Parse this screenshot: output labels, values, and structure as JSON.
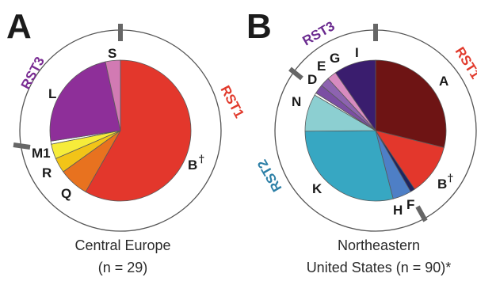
{
  "panels": [
    {
      "letter": "A",
      "caption": [
        "Central Europe",
        "(n = 29)"
      ],
      "chart_data": {
        "type": "pie",
        "title": "",
        "group_labels": [
          {
            "text": "RST1",
            "color": "#e13a2c"
          },
          {
            "text": "RST3",
            "color": "#7a2c93"
          }
        ],
        "slices": [
          {
            "label": "B",
            "mark": "†",
            "value": 17,
            "color": "#e3372c"
          },
          {
            "label": "Q",
            "value": 2,
            "color": "#e8721f"
          },
          {
            "label": "R",
            "value": 1,
            "color": "#f2c418"
          },
          {
            "label": "M1",
            "value": 1,
            "color": "#f6ec3a"
          },
          {
            "label": "",
            "value": 0.2,
            "color": "#ffffff"
          },
          {
            "label": "L",
            "value": 7,
            "color": "#8e2f99"
          },
          {
            "label": "S",
            "value": 1,
            "color": "#d27ab3"
          }
        ]
      }
    },
    {
      "letter": "B",
      "caption": [
        "Northeastern",
        "United States (n = 90)*"
      ],
      "chart_data": {
        "type": "pie",
        "title": "",
        "group_labels": [
          {
            "text": "RST1",
            "color": "#e13a2c"
          },
          {
            "text": "RST3",
            "color": "#6a2a8f"
          },
          {
            "text": "RST2",
            "color": "#2c7fa6"
          }
        ],
        "slices": [
          {
            "label": "A",
            "value": 27,
            "color": "#6e1414"
          },
          {
            "label": "B",
            "mark": "†",
            "value": 11,
            "color": "#e3372c"
          },
          {
            "label": "F",
            "value": 1,
            "color": "#1e2560"
          },
          {
            "label": "H",
            "value": 4,
            "color": "#4e7fc6"
          },
          {
            "label": "K",
            "value": 27,
            "color": "#37a7c2"
          },
          {
            "label": "N",
            "value": 8,
            "color": "#8ccfd1"
          },
          {
            "label": "",
            "value": 0.5,
            "color": "#ffffff"
          },
          {
            "label": "D",
            "value": 2,
            "color": "#7b4ea3"
          },
          {
            "label": "E",
            "value": 2,
            "color": "#8d63b0"
          },
          {
            "label": "G",
            "value": 2,
            "color": "#d88bc0"
          },
          {
            "label": "I",
            "value": 9,
            "color": "#3a1d6e"
          }
        ]
      }
    }
  ]
}
